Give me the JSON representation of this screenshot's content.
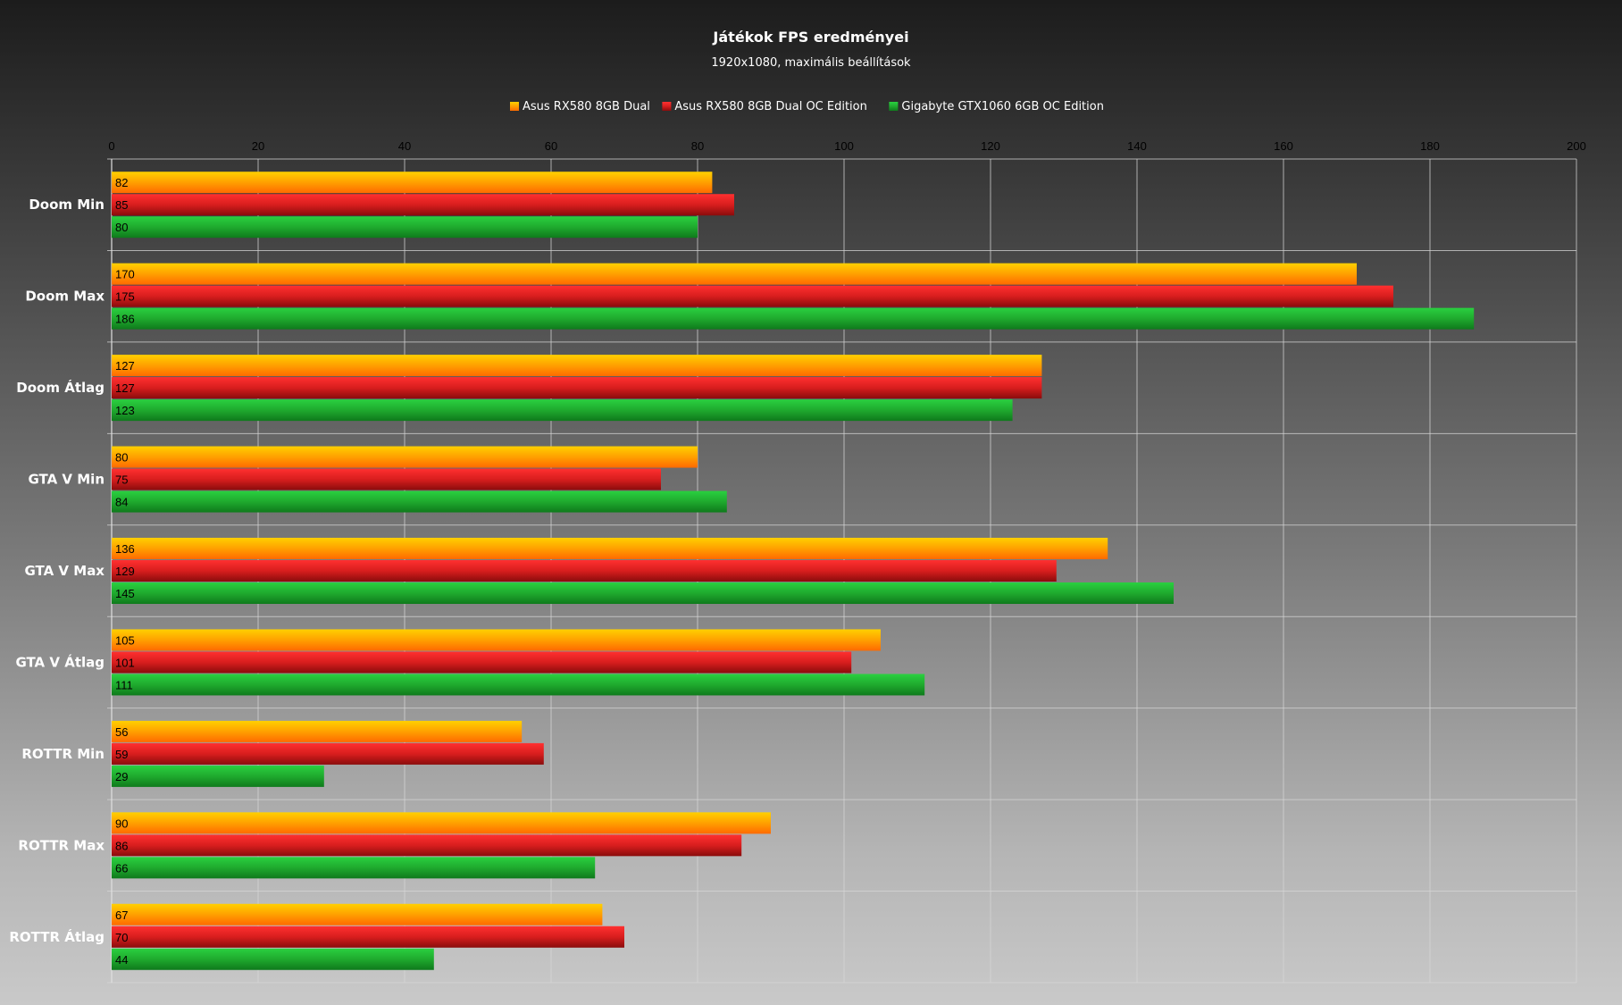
{
  "chart_data": {
    "type": "bar",
    "orientation": "horizontal",
    "title": "Játékok FPS eredményei",
    "subtitle": "1920x1080, maximális beállítások",
    "categories": [
      "Doom Min",
      "Doom Max",
      "Doom Átlag",
      "GTA V Min",
      "GTA V Max",
      "GTA V Átlag",
      "ROTTR Min",
      "ROTTR Max",
      "ROTTR Átlag"
    ],
    "series": [
      {
        "name": "Asus RX580 8GB Dual",
        "color": "#ff9900",
        "values": [
          82,
          170,
          127,
          80,
          136,
          105,
          56,
          90,
          67
        ]
      },
      {
        "name": "Asus RX580 8GB Dual OC Edition",
        "color": "#d81e1e",
        "values": [
          85,
          175,
          127,
          75,
          129,
          101,
          59,
          86,
          70
        ]
      },
      {
        "name": "Gigabyte GTX1060 6GB OC Edition",
        "color": "#1faa2e",
        "values": [
          80,
          186,
          123,
          84,
          145,
          111,
          29,
          66,
          44
        ]
      }
    ],
    "xlim": [
      0,
      200
    ],
    "xticks": [
      0,
      20,
      40,
      60,
      80,
      100,
      120,
      140,
      160,
      180,
      200
    ],
    "x_axis_position": "top",
    "legend_position": "top",
    "grid": true,
    "data_labels": true
  }
}
